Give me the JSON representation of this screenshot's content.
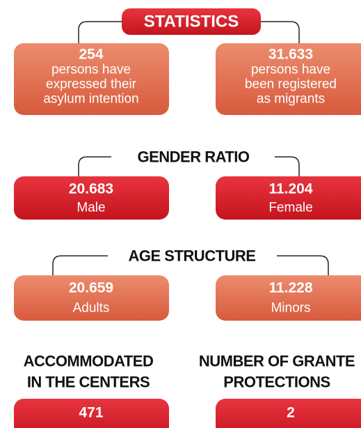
{
  "statistics": {
    "title": "STATISTICS",
    "boxes": [
      {
        "value": "254",
        "lines": [
          "persons have",
          "expressed their",
          "asylum intention"
        ]
      },
      {
        "value": "31.633",
        "lines": [
          "persons have",
          "been registered",
          "as migrants"
        ]
      }
    ]
  },
  "gender_ratio": {
    "title": "GENDER RATIO",
    "boxes": [
      {
        "value": "20.683",
        "label": "Male"
      },
      {
        "value": "11.204",
        "label": "Female"
      }
    ]
  },
  "age_structure": {
    "title": "AGE STRUCTURE",
    "boxes": [
      {
        "value": "20.659",
        "label": "Adults"
      },
      {
        "value": "11.228",
        "label": "Minors"
      }
    ]
  },
  "bottom": [
    {
      "title_lines": [
        "ACCOMMODATED",
        "IN THE CENTERS"
      ],
      "value": "471"
    },
    {
      "title_lines": [
        "NUMBER OF GRANTE",
        "PROTECTIONS"
      ],
      "value": "2"
    }
  ]
}
